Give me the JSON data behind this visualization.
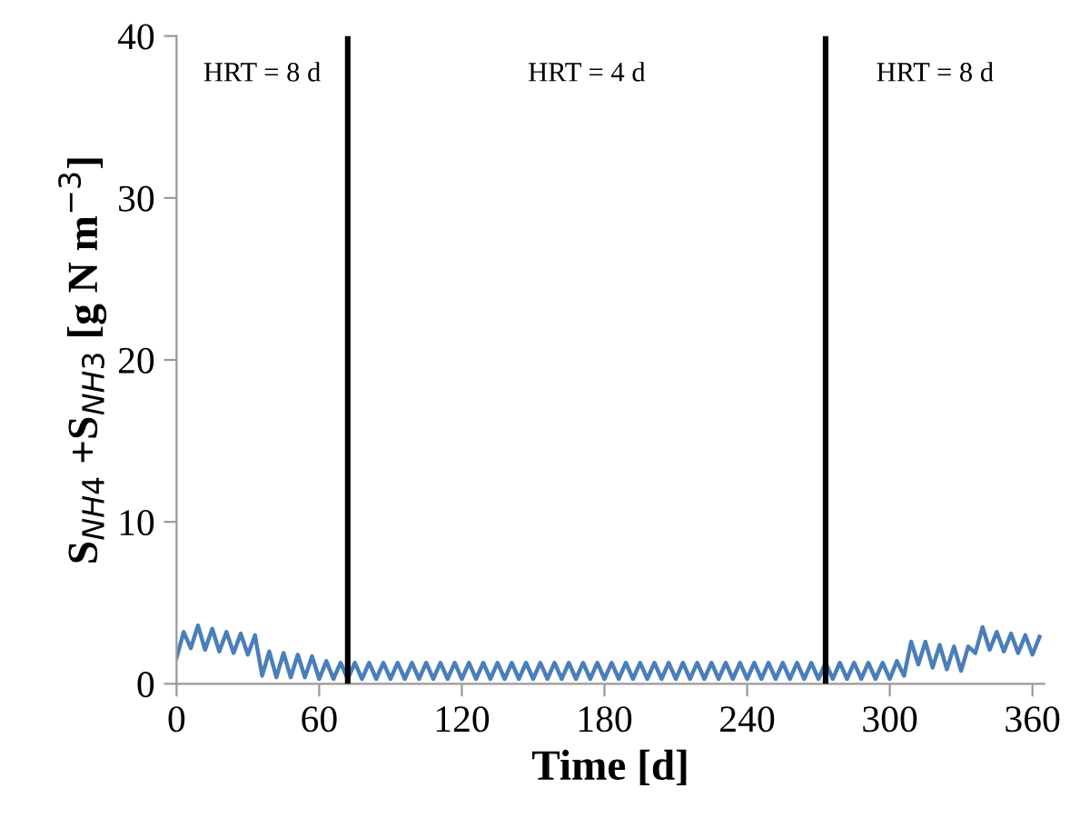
{
  "chart_data": {
    "type": "line",
    "xlabel": "Time [d]",
    "ylabel": "S$_{NH4}$ +S$_{NH3}$ [g N m$^{−3}$]",
    "xlim": [
      0,
      365
    ],
    "xticks": [
      0,
      60,
      120,
      180,
      240,
      300,
      360
    ],
    "ylim": [
      0,
      40
    ],
    "yticks": [
      0,
      10,
      20,
      30,
      40
    ],
    "grid": false,
    "marker": "none",
    "line_style": "solid",
    "x": [
      0,
      3,
      6,
      9,
      12,
      15,
      18,
      21,
      24,
      27,
      30,
      33,
      36,
      39,
      42,
      45,
      48,
      51,
      54,
      57,
      60,
      63,
      66,
      69,
      72,
      75,
      78,
      81,
      84,
      87,
      90,
      93,
      96,
      99,
      102,
      105,
      108,
      111,
      114,
      117,
      120,
      123,
      126,
      129,
      132,
      135,
      138,
      141,
      144,
      147,
      150,
      153,
      156,
      159,
      162,
      165,
      168,
      171,
      174,
      177,
      180,
      183,
      186,
      189,
      192,
      195,
      198,
      201,
      204,
      207,
      210,
      213,
      216,
      219,
      222,
      225,
      228,
      231,
      234,
      237,
      240,
      243,
      246,
      249,
      252,
      255,
      258,
      261,
      264,
      267,
      270,
      273,
      276,
      279,
      282,
      285,
      288,
      291,
      294,
      297,
      300,
      303,
      306,
      309,
      312,
      315,
      318,
      321,
      324,
      327,
      330,
      333,
      336,
      339,
      342,
      345,
      348,
      351,
      354,
      357,
      360,
      363
    ],
    "series": [
      {
        "color": "#4a7ebb",
        "values": [
          1.6,
          3.2,
          2.2,
          3.6,
          2.1,
          3.4,
          2.0,
          3.2,
          1.9,
          3.1,
          1.8,
          3.0,
          0.5,
          2.0,
          0.4,
          1.9,
          0.4,
          1.8,
          0.4,
          1.7,
          0.3,
          1.4,
          0.3,
          1.3,
          0.3,
          1.3,
          0.3,
          1.3,
          0.3,
          1.3,
          0.3,
          1.3,
          0.3,
          1.3,
          0.3,
          1.3,
          0.3,
          1.3,
          0.3,
          1.3,
          0.3,
          1.3,
          0.3,
          1.3,
          0.3,
          1.3,
          0.3,
          1.3,
          0.3,
          1.3,
          0.3,
          1.3,
          0.3,
          1.3,
          0.3,
          1.3,
          0.3,
          1.3,
          0.3,
          1.3,
          0.3,
          1.3,
          0.3,
          1.3,
          0.3,
          1.3,
          0.3,
          1.3,
          0.3,
          1.3,
          0.3,
          1.3,
          0.3,
          1.3,
          0.3,
          1.3,
          0.3,
          1.3,
          0.3,
          1.3,
          0.3,
          1.3,
          0.3,
          1.3,
          0.3,
          1.3,
          0.3,
          1.3,
          0.3,
          1.3,
          0.3,
          1.3,
          0.3,
          1.3,
          0.3,
          1.3,
          0.3,
          1.3,
          0.3,
          1.3,
          0.3,
          1.4,
          0.5,
          2.6,
          1.2,
          2.6,
          1.0,
          2.4,
          0.9,
          2.3,
          0.8,
          2.3,
          1.9,
          3.5,
          2.1,
          3.2,
          2.0,
          3.1,
          1.9,
          3.0,
          1.8,
          2.9
        ]
      }
    ],
    "ref_lines": [
      {
        "axis": "x",
        "value": 72,
        "color": "#000000"
      },
      {
        "axis": "x",
        "value": 273,
        "color": "#000000"
      }
    ],
    "annotations": [
      "HRT = 8 d",
      "HRT = 4 d",
      "HRT = 8 d"
    ]
  }
}
